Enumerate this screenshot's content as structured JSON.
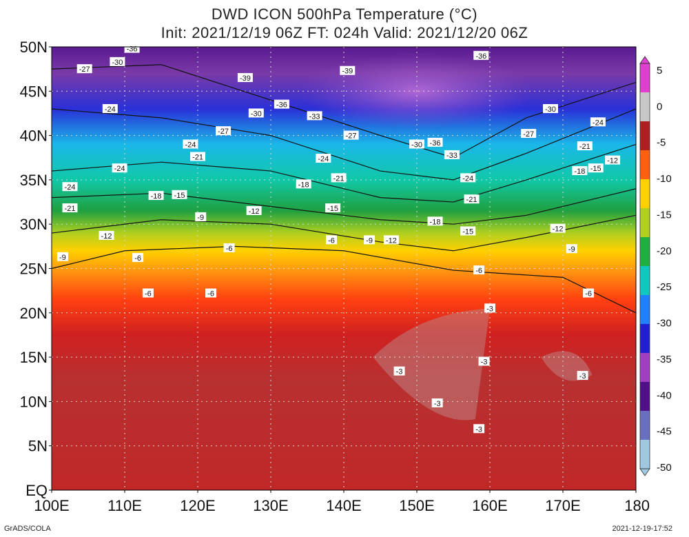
{
  "header": {
    "title": "DWD ICON 500hPa Temperature (°C)",
    "subtitle": "Init: 2021/12/19 06Z  FT: 024h  Valid: 2021/12/20 06Z"
  },
  "axes": {
    "lat_labels": [
      "50N",
      "45N",
      "40N",
      "35N",
      "30N",
      "25N",
      "20N",
      "15N",
      "10N",
      "5N",
      "EQ"
    ],
    "lon_labels": [
      "100E",
      "110E",
      "120E",
      "130E",
      "140E",
      "150E",
      "160E",
      "170E",
      "180"
    ]
  },
  "colorbar": {
    "labels": [
      "5",
      "0",
      "-5",
      "-10",
      "-15",
      "-20",
      "-25",
      "-30",
      "-35",
      "-40",
      "-45",
      "-50"
    ],
    "colors": [
      "#e040d0",
      "#c8c8c8",
      "#b02020",
      "#ff6010",
      "#ffd000",
      "#b0d020",
      "#20b040",
      "#10c8c0",
      "#2080ff",
      "#2020d0",
      "#a040c0",
      "#50108a",
      "#6a70c0",
      "#a0c8e0"
    ]
  },
  "contour_labels": [
    {
      "text": "-36",
      "lon": 111,
      "lat": 49.8
    },
    {
      "text": "-30",
      "lon": 109,
      "lat": 48.3
    },
    {
      "text": "-27",
      "lon": 104.5,
      "lat": 47.5
    },
    {
      "text": "-39",
      "lon": 126.5,
      "lat": 46.5
    },
    {
      "text": "-39",
      "lon": 140.5,
      "lat": 47.3
    },
    {
      "text": "-36",
      "lon": 131.5,
      "lat": 43.5
    },
    {
      "text": "-30",
      "lon": 128,
      "lat": 42.5
    },
    {
      "text": "-33",
      "lon": 136,
      "lat": 42.2
    },
    {
      "text": "-24",
      "lon": 108,
      "lat": 43
    },
    {
      "text": "-27",
      "lon": 123.5,
      "lat": 40.5
    },
    {
      "text": "-24",
      "lon": 119,
      "lat": 39
    },
    {
      "text": "-27",
      "lon": 141,
      "lat": 40
    },
    {
      "text": "-30",
      "lon": 150,
      "lat": 39
    },
    {
      "text": "-36",
      "lon": 152.5,
      "lat": 39.2
    },
    {
      "text": "-33",
      "lon": 154.8,
      "lat": 37.8
    },
    {
      "text": "-36",
      "lon": 158.8,
      "lat": 49
    },
    {
      "text": "-30",
      "lon": 168.3,
      "lat": 43
    },
    {
      "text": "-27",
      "lon": 165.3,
      "lat": 40.2
    },
    {
      "text": "-24",
      "lon": 174.8,
      "lat": 41.5
    },
    {
      "text": "-21",
      "lon": 173,
      "lat": 38.8
    },
    {
      "text": "-12",
      "lon": 176.8,
      "lat": 37.2
    },
    {
      "text": "-15",
      "lon": 174.5,
      "lat": 36.3
    },
    {
      "text": "-18",
      "lon": 172.3,
      "lat": 36
    },
    {
      "text": "-21",
      "lon": 120,
      "lat": 37.6
    },
    {
      "text": "-24",
      "lon": 109.3,
      "lat": 36.3
    },
    {
      "text": "-24",
      "lon": 137.2,
      "lat": 37.4
    },
    {
      "text": "-21",
      "lon": 139.3,
      "lat": 35.2
    },
    {
      "text": "-24",
      "lon": 157,
      "lat": 35.2
    },
    {
      "text": "-21",
      "lon": 157.5,
      "lat": 32.8
    },
    {
      "text": "-24",
      "lon": 102.5,
      "lat": 34.2
    },
    {
      "text": "-18",
      "lon": 114.3,
      "lat": 33.2
    },
    {
      "text": "-15",
      "lon": 117.5,
      "lat": 33.3
    },
    {
      "text": "-18",
      "lon": 134.5,
      "lat": 34.5
    },
    {
      "text": "-12",
      "lon": 127.7,
      "lat": 31.5
    },
    {
      "text": "-15",
      "lon": 138.5,
      "lat": 31.8
    },
    {
      "text": "-21",
      "lon": 102.5,
      "lat": 31.8
    },
    {
      "text": "-9",
      "lon": 120.4,
      "lat": 30.8
    },
    {
      "text": "-18",
      "lon": 152.5,
      "lat": 30.3
    },
    {
      "text": "-15",
      "lon": 157,
      "lat": 29.2
    },
    {
      "text": "-12",
      "lon": 169.3,
      "lat": 29.5
    },
    {
      "text": "-12",
      "lon": 107.5,
      "lat": 28.7
    },
    {
      "text": "-6",
      "lon": 138.3,
      "lat": 28.2
    },
    {
      "text": "-9",
      "lon": 143.5,
      "lat": 28.2
    },
    {
      "text": "-12",
      "lon": 146.5,
      "lat": 28.2
    },
    {
      "text": "-9",
      "lon": 101.5,
      "lat": 26.3
    },
    {
      "text": "-6",
      "lon": 111.8,
      "lat": 26.2
    },
    {
      "text": "-6",
      "lon": 124.3,
      "lat": 27.3
    },
    {
      "text": "-9",
      "lon": 171.2,
      "lat": 27.2
    },
    {
      "text": "-6",
      "lon": 158.5,
      "lat": 24.8
    },
    {
      "text": "-6",
      "lon": 113.2,
      "lat": 22.2
    },
    {
      "text": "-6",
      "lon": 121.8,
      "lat": 22.2
    },
    {
      "text": "-6",
      "lon": 173.5,
      "lat": 22.2
    },
    {
      "text": "-3",
      "lon": 160,
      "lat": 20.5
    },
    {
      "text": "-3",
      "lon": 159.2,
      "lat": 14.5
    },
    {
      "text": "-3",
      "lon": 147.6,
      "lat": 13.4
    },
    {
      "text": "-3",
      "lon": 172.7,
      "lat": 12.9
    },
    {
      "text": "-3",
      "lon": 152.8,
      "lat": 9.8
    },
    {
      "text": "-3",
      "lon": 158.5,
      "lat": 6.9
    }
  ],
  "footer": {
    "left": "GrADS/COLA",
    "right": "2021-12-19-17:52"
  }
}
